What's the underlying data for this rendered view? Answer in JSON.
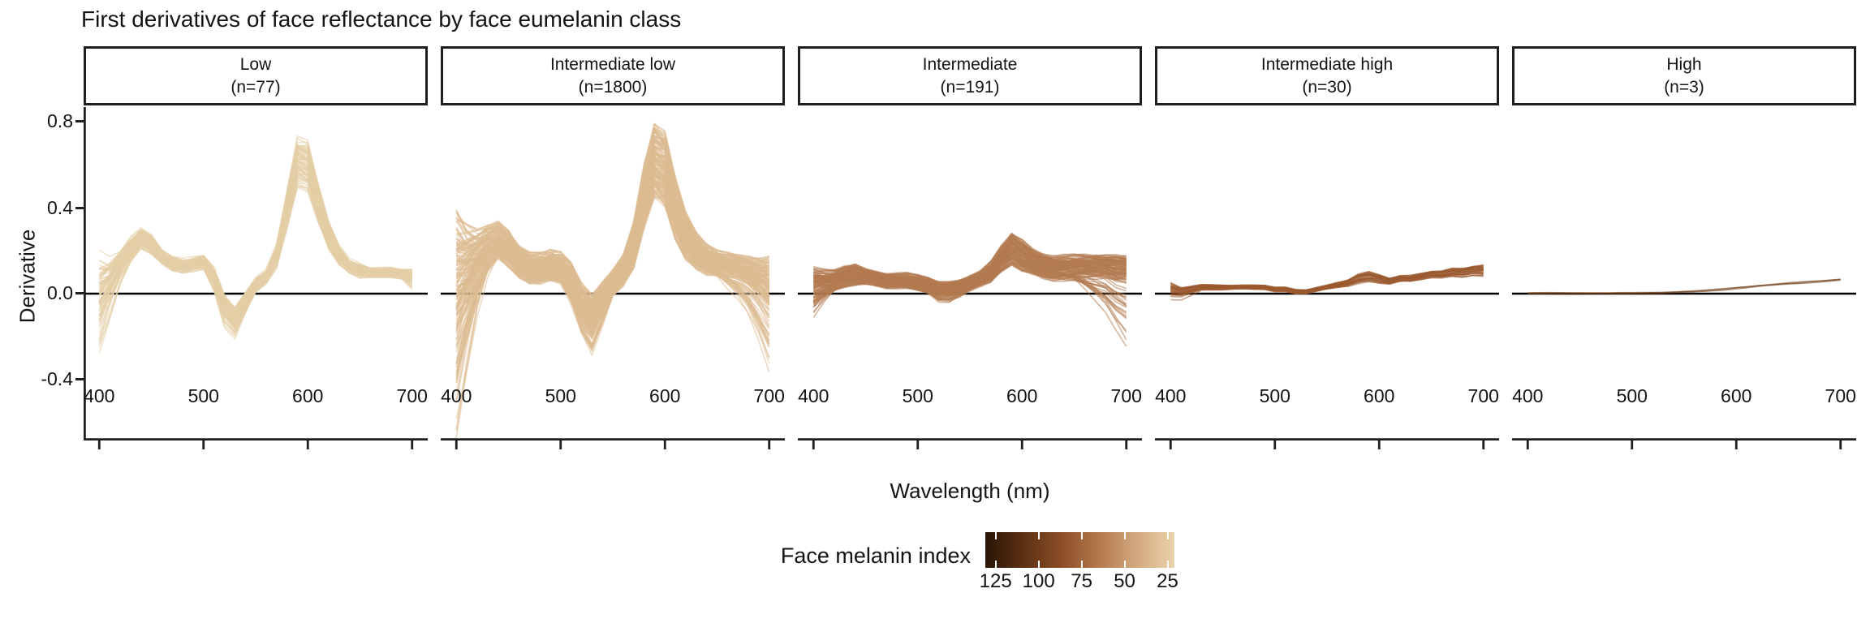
{
  "page": {
    "title": "First derivatives of face reflectance by face eumelanin class"
  },
  "chart_data": {
    "type": "line",
    "title": "First derivatives of face reflectance by face eumelanin class",
    "xlabel": "Wavelength (nm)",
    "ylabel": "Derivative",
    "x_ticks": [
      400,
      500,
      600,
      700
    ],
    "x_tick_labels": [
      "400",
      "500",
      "600",
      "700"
    ],
    "y_ticks": [
      0.8,
      0.4,
      0.0,
      -0.4
    ],
    "y_tick_labels": [
      "0.8",
      "0.4",
      "0.0",
      "-0.4"
    ],
    "x_domain": [
      385,
      715
    ],
    "y_domain": [
      -0.683,
      0.868
    ],
    "zero_line": 0,
    "grid": "off",
    "legend_position": "bottom",
    "wavelengths": [
      400,
      410,
      420,
      430,
      440,
      450,
      460,
      470,
      480,
      490,
      500,
      510,
      520,
      530,
      540,
      550,
      560,
      570,
      580,
      590,
      600,
      610,
      620,
      630,
      640,
      650,
      660,
      670,
      680,
      690,
      700
    ],
    "facets": [
      {
        "label": "Low",
        "n_label": "(n=77)",
        "n": 77,
        "n_drawn": 77,
        "color": "#e4cda5",
        "mean": [
          0.0,
          0.06,
          0.14,
          0.21,
          0.26,
          0.23,
          0.17,
          0.14,
          0.13,
          0.14,
          0.15,
          0.08,
          -0.06,
          -0.12,
          -0.04,
          0.04,
          0.08,
          0.18,
          0.4,
          0.62,
          0.6,
          0.42,
          0.27,
          0.18,
          0.13,
          0.11,
          0.1,
          0.1,
          0.1,
          0.09,
          0.08
        ],
        "band": [
          0.17,
          0.1,
          0.06,
          0.05,
          0.04,
          0.04,
          0.03,
          0.03,
          0.03,
          0.03,
          0.03,
          0.04,
          0.05,
          0.05,
          0.04,
          0.03,
          0.03,
          0.05,
          0.08,
          0.1,
          0.1,
          0.08,
          0.06,
          0.04,
          0.03,
          0.03,
          0.02,
          0.02,
          0.02,
          0.02,
          0.03
        ],
        "tail_low": [
          0.12,
          0.08,
          0.03,
          0,
          0,
          0,
          0,
          0,
          0,
          0,
          0,
          0.02,
          0.04,
          0.04,
          0.02,
          0,
          0,
          0,
          0,
          0,
          0,
          0,
          0,
          0,
          0,
          0,
          0,
          0,
          0,
          0,
          0.04
        ]
      },
      {
        "label": "Intermediate low",
        "n_label": "(n=1800)",
        "n": 1800,
        "n_drawn": 170,
        "color": "#ddbb92",
        "mean": [
          0.05,
          0.1,
          0.16,
          0.22,
          0.25,
          0.21,
          0.15,
          0.12,
          0.12,
          0.13,
          0.12,
          0.06,
          -0.05,
          -0.11,
          -0.03,
          0.05,
          0.11,
          0.22,
          0.45,
          0.62,
          0.58,
          0.4,
          0.27,
          0.2,
          0.16,
          0.14,
          0.13,
          0.12,
          0.1,
          0.07,
          0.04
        ],
        "band": [
          0.28,
          0.18,
          0.11,
          0.08,
          0.07,
          0.07,
          0.06,
          0.06,
          0.06,
          0.06,
          0.06,
          0.07,
          0.08,
          0.09,
          0.07,
          0.05,
          0.06,
          0.09,
          0.12,
          0.14,
          0.14,
          0.12,
          0.09,
          0.07,
          0.06,
          0.05,
          0.05,
          0.05,
          0.06,
          0.08,
          0.11
        ],
        "tail_low": [
          0.45,
          0.3,
          0.15,
          0.05,
          0,
          0,
          0,
          0,
          0,
          0,
          0,
          0.03,
          0.06,
          0.08,
          0.04,
          0,
          0,
          0,
          0,
          0,
          0,
          0,
          0,
          0,
          0,
          0,
          0.05,
          0.1,
          0.15,
          0.22,
          0.3
        ]
      },
      {
        "label": "Intermediate",
        "n_label": "(n=191)",
        "n": 191,
        "n_drawn": 110,
        "color": "#b27a50",
        "mean": [
          0.04,
          0.05,
          0.06,
          0.08,
          0.09,
          0.08,
          0.07,
          0.06,
          0.06,
          0.06,
          0.05,
          0.04,
          0.02,
          0.02,
          0.03,
          0.05,
          0.07,
          0.1,
          0.16,
          0.21,
          0.18,
          0.15,
          0.13,
          0.12,
          0.12,
          0.12,
          0.12,
          0.12,
          0.12,
          0.11,
          0.11
        ],
        "band": [
          0.07,
          0.05,
          0.04,
          0.04,
          0.04,
          0.03,
          0.03,
          0.03,
          0.03,
          0.03,
          0.03,
          0.03,
          0.03,
          0.03,
          0.03,
          0.03,
          0.03,
          0.04,
          0.05,
          0.06,
          0.06,
          0.05,
          0.05,
          0.05,
          0.05,
          0.05,
          0.05,
          0.05,
          0.05,
          0.06,
          0.06
        ],
        "tail_low": [
          0.1,
          0.05,
          0,
          0,
          0,
          0,
          0,
          0,
          0,
          0,
          0,
          0,
          0.03,
          0.04,
          0.02,
          0,
          0,
          0,
          0,
          0,
          0,
          0,
          0,
          0,
          0,
          0,
          0.05,
          0.12,
          0.2,
          0.3,
          0.42
        ]
      },
      {
        "label": "Intermediate high",
        "n_label": "(n=30)",
        "n": 30,
        "n_drawn": 30,
        "color": "#9a5a2f",
        "mean": [
          0.02,
          0.01,
          0.02,
          0.03,
          0.03,
          0.03,
          0.03,
          0.03,
          0.03,
          0.03,
          0.02,
          0.02,
          0.01,
          0.01,
          0.02,
          0.03,
          0.04,
          0.05,
          0.07,
          0.08,
          0.07,
          0.06,
          0.07,
          0.07,
          0.08,
          0.09,
          0.09,
          0.1,
          0.1,
          0.11,
          0.11
        ],
        "band": [
          0.03,
          0.02,
          0.015,
          0.012,
          0.012,
          0.012,
          0.01,
          0.01,
          0.01,
          0.01,
          0.01,
          0.01,
          0.01,
          0.01,
          0.01,
          0.01,
          0.012,
          0.015,
          0.02,
          0.022,
          0.02,
          0.015,
          0.015,
          0.015,
          0.015,
          0.015,
          0.015,
          0.018,
          0.02,
          0.022,
          0.025
        ],
        "tail_low": [
          0.05,
          0.04,
          0.02,
          0,
          0,
          0,
          0,
          0,
          0,
          0,
          0,
          0,
          0,
          0,
          0,
          0,
          0,
          0,
          0,
          0,
          0,
          0,
          0,
          0,
          0,
          0,
          0,
          0,
          0.01,
          0.02,
          0.03
        ]
      },
      {
        "label": "High",
        "n_label": "(n=3)",
        "n": 3,
        "n_drawn": 3,
        "color": "#6e3c18",
        "mean": [
          0,
          0,
          0,
          0,
          0,
          0,
          0,
          0,
          0,
          0,
          0,
          0.001,
          0.002,
          0.003,
          0.005,
          0.007,
          0.009,
          0.012,
          0.016,
          0.02,
          0.025,
          0.029,
          0.034,
          0.038,
          0.042,
          0.046,
          0.049,
          0.053,
          0.056,
          0.06,
          0.064
        ],
        "band": [
          0.004,
          0.004,
          0.004,
          0.004,
          0.004,
          0.004,
          0.004,
          0.004,
          0.004,
          0.004,
          0.004,
          0.004,
          0.004,
          0.004,
          0.004,
          0.004,
          0.004,
          0.004,
          0.004,
          0.004,
          0.004,
          0.004,
          0.004,
          0.004,
          0.004,
          0.004,
          0.004,
          0.004,
          0.004,
          0.004,
          0.004
        ],
        "tail_low": [
          0,
          0,
          0,
          0,
          0,
          0,
          0,
          0,
          0,
          0,
          0,
          0,
          0,
          0,
          0,
          0,
          0,
          0,
          0,
          0,
          0,
          0,
          0,
          0,
          0,
          0,
          0,
          0,
          0,
          0,
          0
        ]
      }
    ],
    "legend": {
      "title": "Face melanin index",
      "tick_labels": [
        "125",
        "100",
        "75",
        "50",
        "25"
      ],
      "tick_values": [
        125,
        100,
        75,
        50,
        25
      ],
      "bar_domain": [
        131,
        21
      ],
      "gradient": [
        "#2a1505",
        "#5c3012",
        "#8a4d26",
        "#b5794d",
        "#d3a87e",
        "#ead3ab"
      ]
    }
  }
}
